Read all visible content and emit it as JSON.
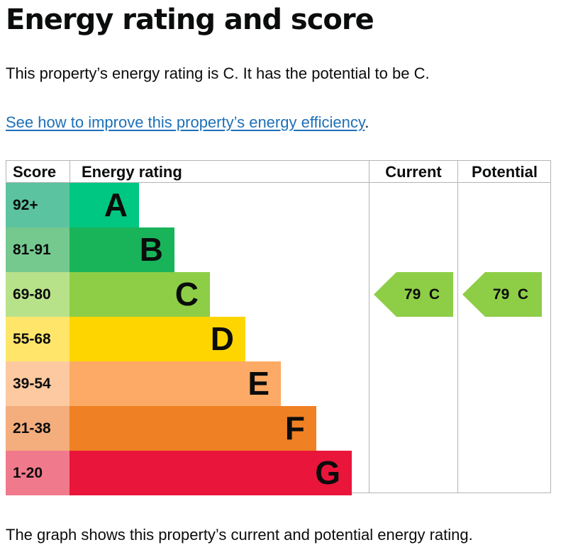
{
  "page": {
    "title": "Energy rating and score",
    "intro": "This property’s energy rating is C. It has the potential to be C.",
    "improve_link": "See how to improve this property’s energy efficiency",
    "improve_suffix": ".",
    "caption": "The graph shows this property’s current and potential energy rating."
  },
  "graph": {
    "headers": {
      "score": "Score",
      "rating": "Energy rating",
      "current": "Current",
      "potential": "Potential"
    },
    "bands": [
      {
        "letter": "A",
        "score": "92+",
        "color": "#008054",
        "score_bg": "#5cc3a0",
        "bar_color": "#00c781"
      },
      {
        "letter": "B",
        "score": "81-91",
        "color": "#19b459",
        "score_bg": "#75c98f",
        "bar_color": "#19b459"
      },
      {
        "letter": "C",
        "score": "69-80",
        "color": "#8dce46",
        "score_bg": "#b8e28a",
        "bar_color": "#8dce46"
      },
      {
        "letter": "D",
        "score": "55-68",
        "color": "#ffd500",
        "score_bg": "#ffe66b",
        "bar_color": "#ffd500"
      },
      {
        "letter": "E",
        "score": "39-54",
        "color": "#fcaa65",
        "score_bg": "#fdc9a0",
        "bar_color": "#fcaa65"
      },
      {
        "letter": "F",
        "score": "21-38",
        "color": "#ef8023",
        "score_bg": "#f4ad7c",
        "bar_color": "#ef8023"
      },
      {
        "letter": "G",
        "score": "1-20",
        "color": "#e9153b",
        "score_bg": "#f07a8c",
        "bar_color": "#e9153b"
      }
    ],
    "current": {
      "score": "79",
      "letter": "C",
      "label": "79  C",
      "color": "#8dce46"
    },
    "potential": {
      "score": "79",
      "letter": "C",
      "label": "79  C",
      "color": "#8dce46"
    }
  }
}
